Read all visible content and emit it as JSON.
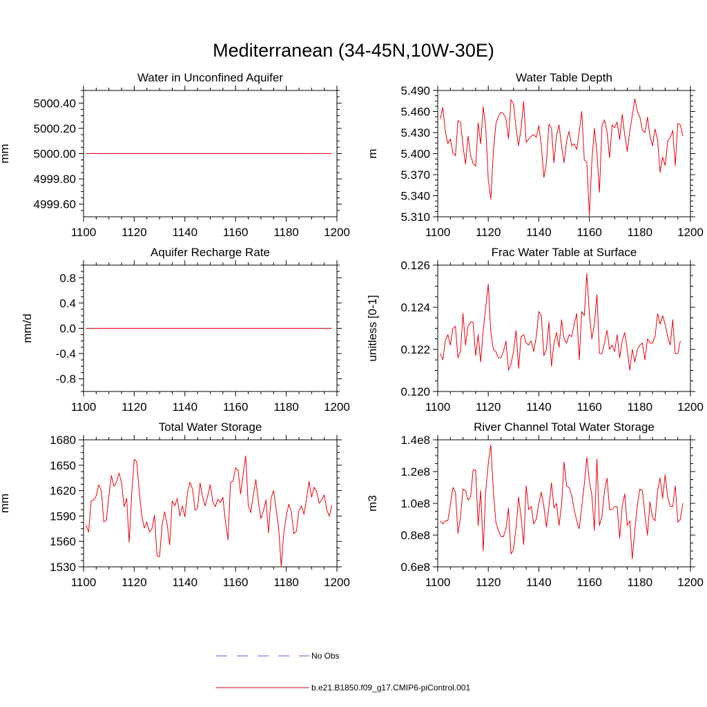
{
  "figure_title": "Mediterranean (34-45N,10W-30E)",
  "legend": [
    {
      "label": "No Obs",
      "color": "#4a5ccf",
      "style": "dashed"
    },
    {
      "label": "b.e21.B1850.f09_g17.CMIP6-piControl.001",
      "color": "#e8000b",
      "style": "solid"
    }
  ],
  "chart_data": [
    {
      "type": "line",
      "title": "Water in Unconfined Aquifer",
      "ylabel": "mm",
      "xlim": [
        1100,
        1200
      ],
      "ylim": [
        4999.5,
        5000.5
      ],
      "xticks": [
        1100,
        1120,
        1140,
        1160,
        1180,
        1200
      ],
      "yticks": [
        4999.6,
        4999.8,
        5000.0,
        5000.2,
        5000.4
      ],
      "yticklabels": [
        "4999.60",
        "4999.80",
        "5000.00",
        "5000.20",
        "5000.40"
      ],
      "series": [
        {
          "name": "b.e21.B1850.f09_g17.CMIP6-piControl.001",
          "x_start": 1101,
          "x_step": 1,
          "values": [
            5000,
            5000,
            5000,
            5000,
            5000,
            5000,
            5000,
            5000,
            5000,
            5000,
            5000,
            5000,
            5000,
            5000,
            5000,
            5000,
            5000,
            5000,
            5000,
            5000,
            5000,
            5000,
            5000,
            5000,
            5000,
            5000,
            5000,
            5000,
            5000,
            5000,
            5000,
            5000,
            5000,
            5000,
            5000,
            5000,
            5000,
            5000,
            5000,
            5000,
            5000,
            5000,
            5000,
            5000,
            5000,
            5000,
            5000,
            5000,
            5000,
            5000,
            5000,
            5000,
            5000,
            5000,
            5000,
            5000,
            5000,
            5000,
            5000,
            5000,
            5000,
            5000,
            5000,
            5000,
            5000,
            5000,
            5000,
            5000,
            5000,
            5000,
            5000,
            5000,
            5000,
            5000,
            5000,
            5000,
            5000,
            5000,
            5000,
            5000,
            5000,
            5000,
            5000,
            5000,
            5000,
            5000,
            5000,
            5000,
            5000,
            5000,
            5000,
            5000,
            5000,
            5000,
            5000,
            5000,
            5000,
            5000
          ]
        }
      ]
    },
    {
      "type": "line",
      "title": "Water Table Depth",
      "ylabel": "m",
      "xlim": [
        1100,
        1200
      ],
      "ylim": [
        5.31,
        5.49
      ],
      "xticks": [
        1100,
        1120,
        1140,
        1160,
        1180,
        1200
      ],
      "yticks": [
        5.31,
        5.34,
        5.37,
        5.4,
        5.43,
        5.46,
        5.49
      ],
      "yticklabels": [
        "5.310",
        "5.340",
        "5.370",
        "5.400",
        "5.430",
        "5.460",
        "5.490"
      ],
      "series": [
        {
          "name": "b.e21.B1850.f09_g17.CMIP6-piControl.001",
          "x_start": 1101,
          "x_step": 1,
          "values": [
            5.449,
            5.466,
            5.432,
            5.414,
            5.421,
            5.401,
            5.397,
            5.447,
            5.445,
            5.411,
            5.385,
            5.425,
            5.398,
            5.386,
            5.382,
            5.444,
            5.414,
            5.467,
            5.437,
            5.363,
            5.335,
            5.402,
            5.442,
            5.453,
            5.459,
            5.457,
            5.45,
            5.421,
            5.477,
            5.471,
            5.436,
            5.411,
            5.437,
            5.474,
            5.416,
            5.421,
            5.425,
            5.427,
            5.423,
            5.44,
            5.411,
            5.366,
            5.386,
            5.442,
            5.436,
            5.387,
            5.426,
            5.441,
            5.411,
            5.387,
            5.418,
            5.432,
            5.411,
            5.414,
            5.406,
            5.431,
            5.46,
            5.391,
            5.388,
            5.312,
            5.39,
            5.436,
            5.401,
            5.345,
            5.44,
            5.448,
            5.431,
            5.394,
            5.441,
            5.437,
            5.445,
            5.42,
            5.456,
            5.427,
            5.403,
            5.432,
            5.454,
            5.478,
            5.46,
            5.452,
            5.433,
            5.43,
            5.452,
            5.425,
            5.411,
            5.435,
            5.42,
            5.373,
            5.395,
            5.383,
            5.418,
            5.423,
            5.433,
            5.383,
            5.443,
            5.441,
            5.425
          ]
        }
      ]
    },
    {
      "type": "line",
      "title": "Aquifer Recharge Rate",
      "ylabel": "mm/d",
      "xlim": [
        1100,
        1200
      ],
      "ylim": [
        -1.0,
        1.0
      ],
      "xticks": [
        1100,
        1120,
        1140,
        1160,
        1180,
        1200
      ],
      "yticks": [
        -0.8,
        -0.4,
        0.0,
        0.4,
        0.8
      ],
      "yticklabels": [
        "-0.8",
        "-0.4",
        "0.0",
        "0.4",
        "0.8"
      ],
      "series": [
        {
          "name": "b.e21.B1850.f09_g17.CMIP6-piControl.001",
          "x_start": 1101,
          "x_step": 1,
          "values": [
            0,
            0,
            0,
            0,
            0,
            0,
            0,
            0,
            0,
            0,
            0,
            0,
            0,
            0,
            0,
            0,
            0,
            0,
            0,
            0,
            0,
            0,
            0,
            0,
            0,
            0,
            0,
            0,
            0,
            0,
            0,
            0,
            0,
            0,
            0,
            0,
            0,
            0,
            0,
            0,
            0,
            0,
            0,
            0,
            0,
            0,
            0,
            0,
            0,
            0,
            0,
            0,
            0,
            0,
            0,
            0,
            0,
            0,
            0,
            0,
            0,
            0,
            0,
            0,
            0,
            0,
            0,
            0,
            0,
            0,
            0,
            0,
            0,
            0,
            0,
            0,
            0,
            0,
            0,
            0,
            0,
            0,
            0,
            0,
            0,
            0,
            0,
            0,
            0,
            0,
            0,
            0,
            0,
            0,
            0,
            0,
            0,
            0
          ]
        }
      ]
    },
    {
      "type": "line",
      "title": "Frac Water Table at Surface",
      "ylabel": "unitless [0-1]",
      "xlim": [
        1100,
        1200
      ],
      "ylim": [
        0.12,
        0.126
      ],
      "xticks": [
        1100,
        1120,
        1140,
        1160,
        1180,
        1200
      ],
      "yticks": [
        0.12,
        0.122,
        0.124,
        0.126
      ],
      "yticklabels": [
        "0.120",
        "0.122",
        "0.124",
        "0.126"
      ],
      "series": [
        {
          "name": "b.e21.B1850.f09_g17.CMIP6-piControl.001",
          "x_start": 1101,
          "x_step": 1,
          "values": [
            0.1218,
            0.1215,
            0.1224,
            0.1227,
            0.1222,
            0.123,
            0.1231,
            0.1216,
            0.1219,
            0.1237,
            0.1222,
            0.1231,
            0.1233,
            0.1233,
            0.1217,
            0.1227,
            0.1214,
            0.1229,
            0.124,
            0.1251,
            0.1228,
            0.122,
            0.1219,
            0.1216,
            0.1216,
            0.1219,
            0.1224,
            0.121,
            0.1213,
            0.1219,
            0.1229,
            0.1211,
            0.1226,
            0.1227,
            0.1223,
            0.1222,
            0.1224,
            0.1219,
            0.1226,
            0.1238,
            0.1236,
            0.1217,
            0.122,
            0.1233,
            0.1212,
            0.1223,
            0.1228,
            0.1221,
            0.1234,
            0.1225,
            0.1223,
            0.1227,
            0.1226,
            0.1232,
            0.1237,
            0.1215,
            0.1238,
            0.1236,
            0.1256,
            0.1237,
            0.1225,
            0.1232,
            0.1246,
            0.1218,
            0.1218,
            0.1223,
            0.1229,
            0.122,
            0.1222,
            0.1219,
            0.1227,
            0.1216,
            0.1224,
            0.1228,
            0.122,
            0.121,
            0.122,
            0.1214,
            0.122,
            0.1222,
            0.1223,
            0.1215,
            0.1225,
            0.1223,
            0.1223,
            0.1226,
            0.1237,
            0.1232,
            0.1236,
            0.1232,
            0.1226,
            0.1222,
            0.1234,
            0.1218,
            0.1218,
            0.1224
          ]
        }
      ]
    },
    {
      "type": "line",
      "title": "Total Water Storage",
      "ylabel": "mm",
      "xlim": [
        1100,
        1200
      ],
      "ylim": [
        1530,
        1680
      ],
      "xticks": [
        1100,
        1120,
        1140,
        1160,
        1180,
        1200
      ],
      "yticks": [
        1530,
        1560,
        1590,
        1620,
        1650,
        1680
      ],
      "yticklabels": [
        "1530",
        "1560",
        "1590",
        "1620",
        "1650",
        "1680"
      ],
      "series": [
        {
          "name": "b.e21.B1850.f09_g17.CMIP6-piControl.001",
          "x_start": 1101,
          "x_step": 1,
          "values": [
            1579,
            1571,
            1608,
            1609,
            1614,
            1627,
            1620,
            1583,
            1585,
            1614,
            1638,
            1625,
            1630,
            1641,
            1629,
            1601,
            1611,
            1559,
            1616,
            1657,
            1654,
            1618,
            1590,
            1576,
            1583,
            1571,
            1575,
            1591,
            1543,
            1542,
            1579,
            1595,
            1580,
            1556,
            1608,
            1602,
            1611,
            1590,
            1602,
            1589,
            1617,
            1630,
            1622,
            1597,
            1599,
            1629,
            1612,
            1602,
            1614,
            1627,
            1607,
            1601,
            1610,
            1606,
            1612,
            1583,
            1562,
            1630,
            1631,
            1647,
            1644,
            1616,
            1640,
            1661,
            1603,
            1594,
            1615,
            1633,
            1607,
            1587,
            1596,
            1609,
            1570,
            1611,
            1620,
            1598,
            1576,
            1531,
            1568,
            1590,
            1604,
            1595,
            1569,
            1572,
            1596,
            1602,
            1592,
            1610,
            1631,
            1612,
            1624,
            1619,
            1605,
            1609,
            1615,
            1597,
            1590,
            1603
          ]
        }
      ]
    },
    {
      "type": "line",
      "title": "River Channel Total Water Storage",
      "ylabel": "m3",
      "xlim": [
        1100,
        1200
      ],
      "ylim": [
        0.6,
        1.4
      ],
      "xticks": [
        1100,
        1120,
        1140,
        1160,
        1180,
        1200
      ],
      "yticks": [
        0.6,
        0.8,
        1.0,
        1.2,
        1.4
      ],
      "yticklabels": [
        "0.6e8",
        "0.8e8",
        "1.0e8",
        "1.2e8",
        "1.4e8"
      ],
      "series": [
        {
          "name": "b.e21.B1850.f09_g17.CMIP6-piControl.001",
          "x_start": 1101,
          "x_step": 1,
          "values": [
            0.89,
            0.87,
            0.89,
            0.89,
            0.99,
            1.1,
            1.07,
            0.81,
            0.91,
            1.09,
            1.08,
            1.02,
            1.04,
            1.21,
            1.21,
            0.86,
            1.08,
            0.7,
            1.08,
            1.25,
            1.37,
            1.08,
            0.88,
            0.83,
            0.79,
            0.79,
            0.84,
            0.97,
            0.68,
            0.71,
            0.85,
            1.04,
            0.91,
            0.74,
            1.11,
            0.96,
            0.98,
            0.87,
            0.9,
            1.0,
            1.07,
            0.98,
            0.85,
            0.98,
            1.13,
            0.97,
            1.0,
            0.86,
            0.99,
            1.26,
            1.11,
            1.1,
            1.05,
            0.96,
            0.89,
            0.84,
            0.98,
            1.12,
            1.29,
            1.14,
            1.05,
            0.83,
            1.28,
            0.86,
            0.92,
            1.08,
            1.16,
            0.96,
            0.96,
            0.98,
            0.98,
            0.78,
            0.98,
            1.06,
            0.86,
            0.89,
            0.65,
            0.83,
            0.99,
            1.09,
            1.08,
            0.93,
            0.8,
            1.01,
            0.91,
            0.89,
            1.08,
            1.16,
            1.03,
            1.18,
            1.04,
            0.98,
            0.98,
            1.11,
            0.88,
            0.9,
            1.0
          ]
        }
      ]
    }
  ]
}
